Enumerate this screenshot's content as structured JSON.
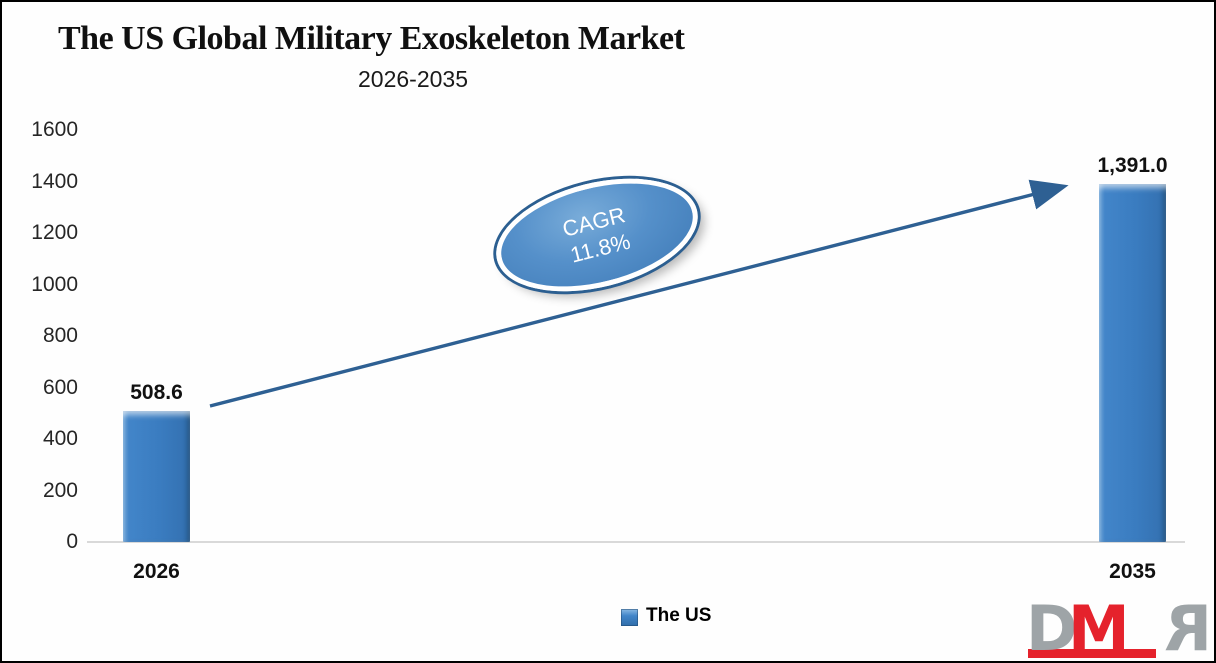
{
  "page": {
    "background": "#fefefe",
    "border_color": "#000000"
  },
  "chart_data": {
    "type": "bar",
    "title": "The US Global Military Exoskeleton Market",
    "subtitle": "2026-2035",
    "categories": [
      "2026",
      "2035"
    ],
    "series": [
      {
        "name": "The US",
        "values": [
          508.6,
          1391.0
        ],
        "data_labels": [
          "508.6",
          "1,391.0"
        ]
      }
    ],
    "xlabel": "",
    "ylabel": "",
    "ylim": [
      0,
      1600
    ],
    "y_ticks": [
      0,
      200,
      400,
      600,
      800,
      1000,
      1200,
      1400,
      1600
    ],
    "grid": false,
    "legend_position": "bottom",
    "bar_color": "#3a7cc0",
    "axis_line_color": "#d9d9d9",
    "annotation": {
      "line1": "CAGR",
      "line2": "11.8%",
      "fill": "#5590ca",
      "ring_color": "#2c5f91",
      "arrow_color": "#2e6093"
    }
  },
  "legend": {
    "label": "The US"
  },
  "logo": {
    "letters": [
      "D",
      "M",
      "R"
    ],
    "gray": "#9ea4a7",
    "red": "#e5222c"
  }
}
